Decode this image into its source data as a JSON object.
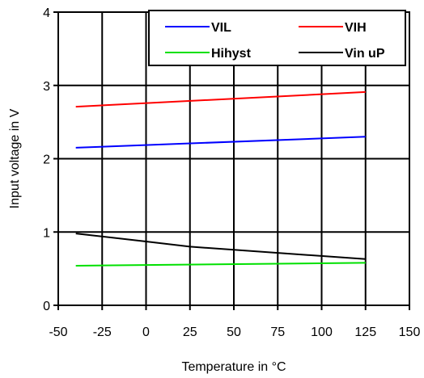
{
  "chart_data": {
    "type": "line",
    "title": "",
    "xlabel": "Temperature in °C",
    "ylabel": "Input voltage in V",
    "xlim": [
      -50,
      150
    ],
    "ylim": [
      0,
      4
    ],
    "x_ticks": [
      "-50",
      "-25",
      "0",
      "25",
      "50",
      "75",
      "100",
      "125",
      "150"
    ],
    "y_ticks": [
      "0",
      "1",
      "2",
      "3",
      "4"
    ],
    "grid": true,
    "legend_position": "top-right",
    "series": [
      {
        "name": "VIL",
        "color": "#0000ff",
        "x": [
          -40,
          125
        ],
        "y": [
          2.15,
          2.3
        ]
      },
      {
        "name": "VIH",
        "color": "#ff0000",
        "x": [
          -40,
          125
        ],
        "y": [
          2.71,
          2.91
        ]
      },
      {
        "name": "Hihyst",
        "color": "#00e000",
        "x": [
          -40,
          125
        ],
        "y": [
          0.54,
          0.58
        ]
      },
      {
        "name": "Vin uP",
        "color": "#000000",
        "x": [
          -40,
          0,
          25,
          125
        ],
        "y": [
          0.98,
          0.87,
          0.8,
          0.63
        ]
      }
    ]
  }
}
